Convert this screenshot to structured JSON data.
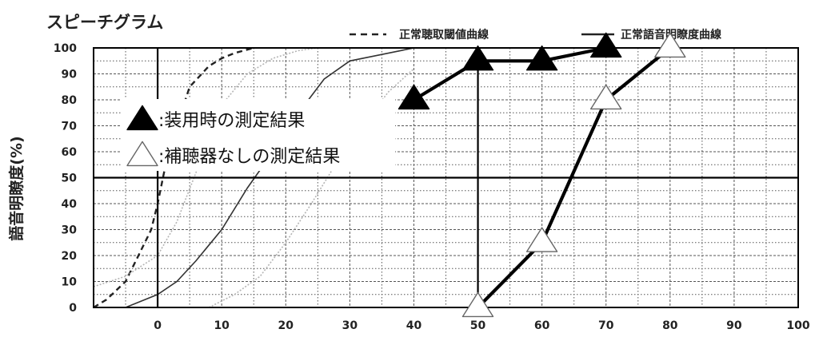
{
  "chart_data": {
    "type": "line",
    "title": "スピーチグラム",
    "ylabel": "語音明瞭度(%)",
    "xlabel": "",
    "xlim": [
      -10,
      100
    ],
    "ylim": [
      0,
      100
    ],
    "xticks": [
      0,
      10,
      20,
      30,
      40,
      50,
      60,
      70,
      80,
      90,
      100
    ],
    "yticks": [
      0,
      10,
      20,
      30,
      40,
      50,
      60,
      70,
      80,
      90,
      100
    ],
    "grid": true,
    "legend_position": "top-right",
    "legend": [
      {
        "label": "正常聴取閾値曲線",
        "style": "dashed"
      },
      {
        "label": "正常語音明瞭度曲線",
        "style": "solid"
      }
    ],
    "callouts": [
      {
        "label": ":装用時の測定結果",
        "marker": "filled-triangle"
      },
      {
        "label": ":補聴器なしの測定結果",
        "marker": "open-triangle"
      }
    ],
    "series": [
      {
        "name": "正常聴取閾値曲線",
        "style": "dashed",
        "color": "#222222",
        "x": [
          -10,
          -8,
          -5,
          -3,
          -1,
          0,
          1,
          3,
          5,
          8,
          10,
          12,
          15
        ],
        "y": [
          0,
          3,
          10,
          20,
          30,
          40,
          52,
          70,
          85,
          93,
          96,
          98,
          100
        ]
      },
      {
        "name": "正常語音明瞭度曲線",
        "style": "solid",
        "color": "#333333",
        "x": [
          -5,
          0,
          3,
          6,
          10,
          14,
          18,
          22,
          26,
          30,
          34,
          38,
          40
        ],
        "y": [
          0,
          5,
          10,
          18,
          30,
          46,
          60,
          75,
          88,
          95,
          97,
          99,
          100
        ]
      },
      {
        "name": "",
        "style": "dotted-gray",
        "color": "#b5b5b5",
        "x": [
          -10,
          -5,
          0,
          3,
          6,
          10,
          14,
          18,
          22,
          25
        ],
        "y": [
          8,
          12,
          20,
          33,
          52,
          78,
          90,
          96,
          99,
          100
        ]
      },
      {
        "name": "",
        "style": "dotted-gray",
        "color": "#b5b5b5",
        "x": [
          8,
          12,
          16,
          20,
          24,
          28,
          32,
          36,
          40
        ],
        "y": [
          0,
          5,
          12,
          25,
          40,
          56,
          70,
          83,
          92
        ]
      },
      {
        "name": "装用時の測定結果",
        "style": "bold",
        "color": "#000000",
        "marker": "filled-triangle",
        "x": [
          40,
          50,
          60,
          70
        ],
        "y": [
          80,
          95,
          95,
          100
        ]
      },
      {
        "name": "補聴器なしの測定結果",
        "style": "bold",
        "color": "#000000",
        "marker": "open-triangle",
        "x": [
          50,
          60,
          70,
          80
        ],
        "y": [
          0,
          25,
          80,
          100
        ]
      }
    ],
    "reference_lines": [
      {
        "axis": "y",
        "value": 50
      },
      {
        "axis": "x",
        "value": 0
      },
      {
        "axis": "x",
        "value": 50
      }
    ]
  }
}
